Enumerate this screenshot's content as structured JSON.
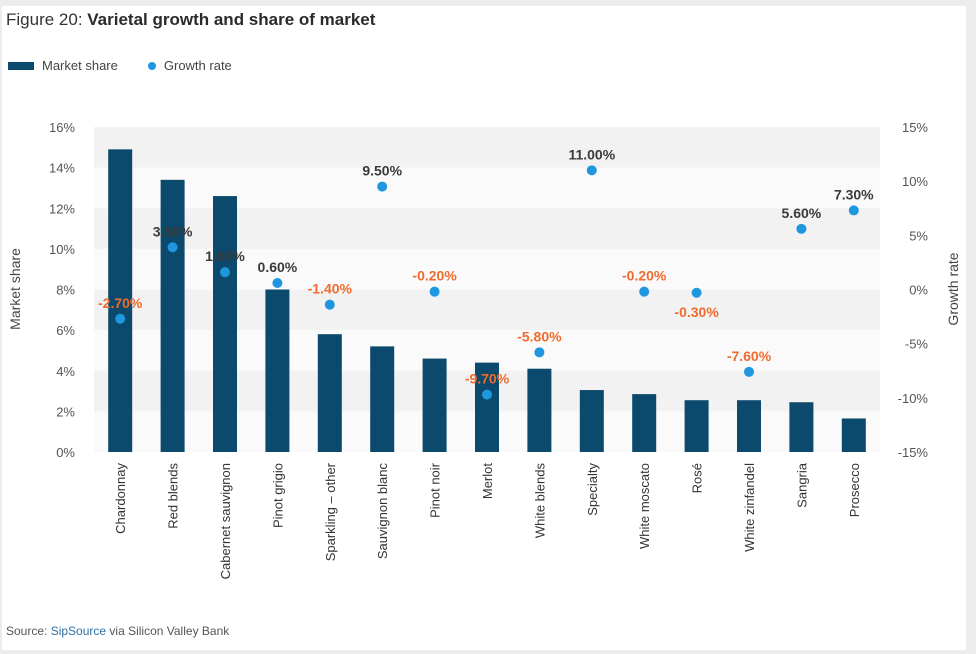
{
  "figure": {
    "title_prefix": "Figure 20: ",
    "title_main": "Varietal growth and share of market",
    "source_prefix": "Source: ",
    "source_name": "SipSource",
    "source_suffix": " via Silicon Valley Bank"
  },
  "colors": {
    "bar": "#0b4a6c",
    "dot": "#1f97e0",
    "positive_label": "#3a3a3a",
    "negative_label": "#f06b2d",
    "band_dark": "#f2f2f2",
    "band_light": "#fafafa"
  },
  "chart_data": {
    "type": "bar",
    "title": "Varietal growth and share of market",
    "legend": [
      "Market share",
      "Growth rate"
    ],
    "legend_placement": "top-left",
    "categories": [
      "Chardonnay",
      "Red blends",
      "Cabernet sauvignon",
      "Pinot grigio",
      "Sparkling – other",
      "Sauvignon blanc",
      "Pinot noir",
      "Merlot",
      "White blends",
      "Specialty",
      "White moscato",
      "Rosé",
      "White zinfandel",
      "Sangria",
      "Prosecco"
    ],
    "series": [
      {
        "name": "Market share",
        "type": "bar",
        "axis": "left",
        "values": [
          14.9,
          13.4,
          12.6,
          8.0,
          5.8,
          5.2,
          4.6,
          4.4,
          4.1,
          3.05,
          2.85,
          2.55,
          2.55,
          2.45,
          1.65
        ]
      },
      {
        "name": "Growth rate",
        "type": "scatter",
        "axis": "right",
        "values": [
          -2.7,
          3.9,
          1.6,
          0.6,
          -1.4,
          9.5,
          -0.2,
          -9.7,
          -5.8,
          11.0,
          -0.2,
          -0.3,
          -7.6,
          5.6,
          7.3
        ],
        "labels": [
          "-2.70%",
          "3.90%",
          "1.60%",
          "0.60%",
          "-1.40%",
          "9.50%",
          "-0.20%",
          "-9.70%",
          "-5.80%",
          "11.00%",
          "-0.20%",
          "-0.30%",
          "-7.60%",
          "5.60%",
          "7.30%"
        ]
      }
    ],
    "ylabel": "Market share",
    "ylim": [
      0,
      16
    ],
    "yticks": [
      "0%",
      "2%",
      "4%",
      "6%",
      "8%",
      "10%",
      "12%",
      "14%",
      "16%"
    ],
    "y2label": "Growth rate",
    "y2lim": [
      -15,
      15
    ],
    "y2ticks": [
      "-15%",
      "-10%",
      "-5%",
      "0%",
      "5%",
      "10%",
      "15%"
    ],
    "xlabel": "",
    "grid": "alternating horizontal bands"
  }
}
